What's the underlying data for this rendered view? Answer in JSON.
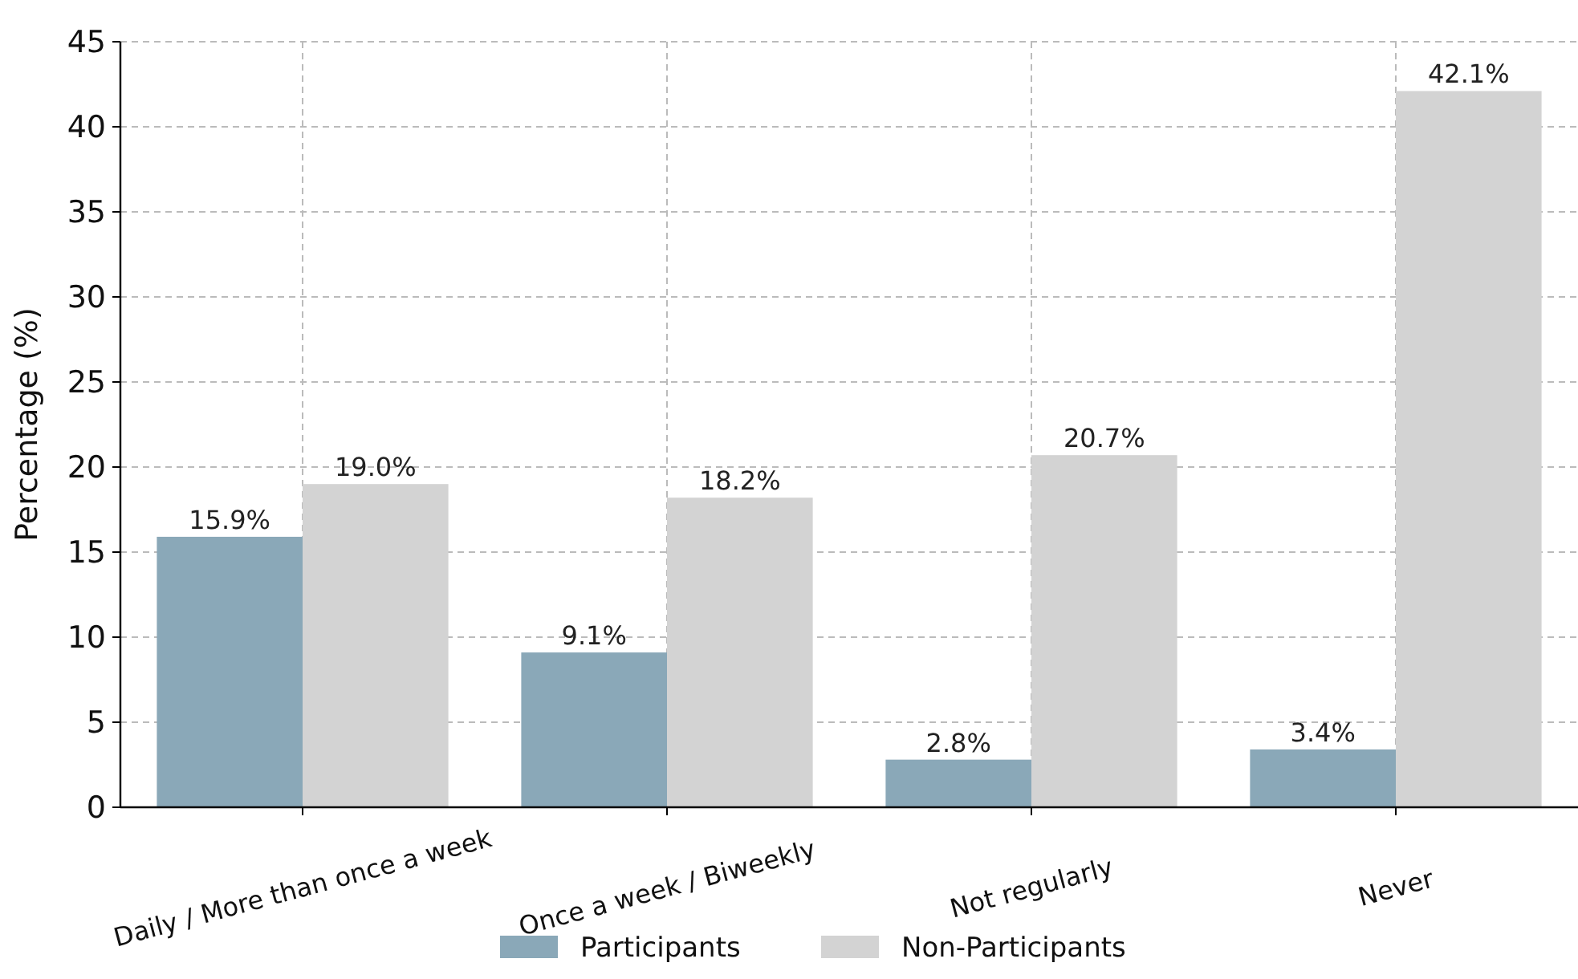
{
  "chart_data": {
    "type": "bar",
    "ylabel": "Percentage (%)",
    "categories": [
      "Daily / More than once a week",
      "Once a week / Biweekly",
      "Not regularly",
      "Never"
    ],
    "series": [
      {
        "name": "Participants",
        "color": "#8aa8b8",
        "values": [
          15.9,
          9.1,
          2.8,
          3.4
        ],
        "value_labels": [
          "15.9%",
          "9.1%",
          "2.8%",
          "3.4%"
        ]
      },
      {
        "name": "Non-Participants",
        "color": "#d3d3d3",
        "values": [
          19.0,
          18.2,
          20.7,
          42.1
        ],
        "value_labels": [
          "19.0%",
          "18.2%",
          "20.7%",
          "42.1%"
        ]
      }
    ],
    "ylim": [
      0,
      45
    ],
    "yticks": [
      0,
      5,
      10,
      15,
      20,
      25,
      30,
      35,
      40,
      45
    ],
    "grid": true,
    "legend": "bottom"
  }
}
